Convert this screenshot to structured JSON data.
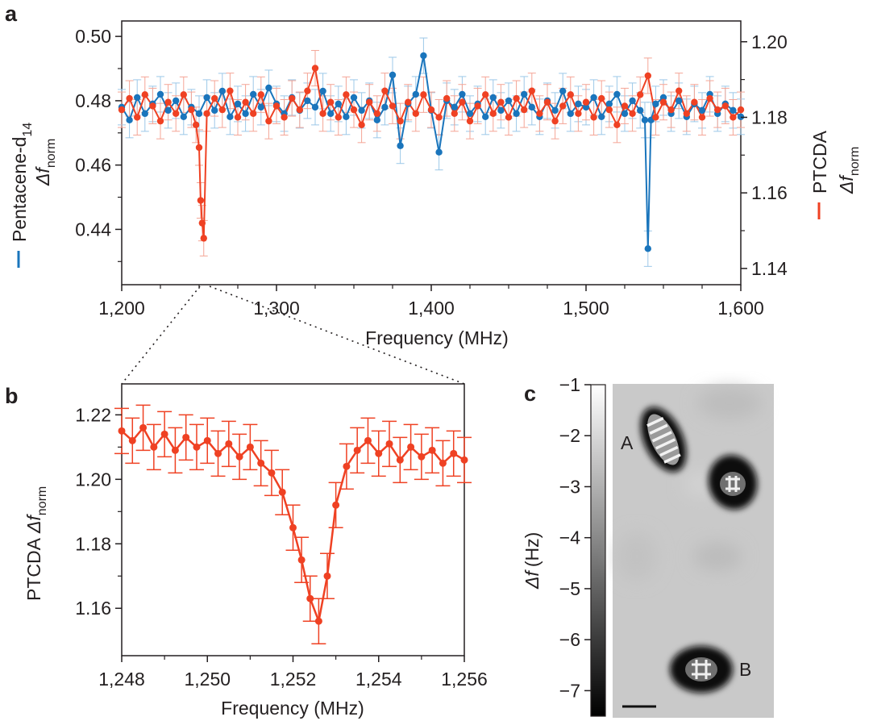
{
  "figure": {
    "panel_a_letter": "a",
    "panel_b_letter": "b",
    "panel_c_letter": "c",
    "colors": {
      "pentacene": "#1a75bc",
      "ptcda": "#ef4123",
      "axis": "#231f20"
    }
  },
  "chart_data": [
    {
      "panel": "a",
      "type": "line",
      "xlabel": "Frequency (MHz)",
      "xlim": [
        1200,
        1600
      ],
      "xticks": [
        1200,
        1300,
        1400,
        1500,
        1600
      ],
      "xtick_labels": [
        "1,200",
        "1,300",
        "1,400",
        "1,500",
        "1,600"
      ],
      "ylabel_left": {
        "prefix": "Pentacene-d",
        "subscript": "14",
        "symbol": "Δf",
        "symbol_sub": "norm"
      },
      "ylabel_right": {
        "prefix": "PTCDA",
        "symbol": "Δf",
        "symbol_sub": "norm"
      },
      "ylim_left": [
        0.4228,
        0.5048
      ],
      "yticks_left": [
        0.44,
        0.46,
        0.48,
        0.5
      ],
      "ytick_labels_left": [
        "0.44",
        "0.46",
        "0.48",
        "0.50"
      ],
      "ylim_right": [
        1.1357,
        1.2055
      ],
      "yticks_right": [
        1.14,
        1.16,
        1.18,
        1.2
      ],
      "ytick_labels_right": [
        "1.14",
        "1.16",
        "1.18",
        "1.20"
      ],
      "series": [
        {
          "name": "Pentacene-d14",
          "axis": "left",
          "color": "#1a75bc",
          "points": [
            [
              1200,
              0.478
            ],
            [
              1205,
              0.474
            ],
            [
              1210,
              0.481
            ],
            [
              1215,
              0.476
            ],
            [
              1220,
              0.479
            ],
            [
              1225,
              0.482
            ],
            [
              1230,
              0.477
            ],
            [
              1235,
              0.48
            ],
            [
              1240,
              0.475
            ],
            [
              1245,
              0.478
            ],
            [
              1250,
              0.476
            ],
            [
              1255,
              0.481
            ],
            [
              1260,
              0.477
            ],
            [
              1265,
              0.483
            ],
            [
              1270,
              0.475
            ],
            [
              1275,
              0.479
            ],
            [
              1280,
              0.476
            ],
            [
              1285,
              0.482
            ],
            [
              1290,
              0.478
            ],
            [
              1295,
              0.484
            ],
            [
              1300,
              0.479
            ],
            [
              1305,
              0.476
            ],
            [
              1310,
              0.481
            ],
            [
              1315,
              0.477
            ],
            [
              1320,
              0.48
            ],
            [
              1325,
              0.478
            ],
            [
              1330,
              0.483
            ],
            [
              1335,
              0.476
            ],
            [
              1340,
              0.479
            ],
            [
              1345,
              0.475
            ],
            [
              1350,
              0.481
            ],
            [
              1355,
              0.477
            ],
            [
              1360,
              0.48
            ],
            [
              1365,
              0.474
            ],
            [
              1370,
              0.478
            ],
            [
              1375,
              0.488
            ],
            [
              1380,
              0.466
            ],
            [
              1385,
              0.479
            ],
            [
              1390,
              0.482
            ],
            [
              1395,
              0.494
            ],
            [
              1400,
              0.477
            ],
            [
              1405,
              0.464
            ],
            [
              1410,
              0.48
            ],
            [
              1415,
              0.478
            ],
            [
              1420,
              0.482
            ],
            [
              1425,
              0.476
            ],
            [
              1430,
              0.479
            ],
            [
              1435,
              0.475
            ],
            [
              1440,
              0.481
            ],
            [
              1445,
              0.477
            ],
            [
              1450,
              0.48
            ],
            [
              1455,
              0.476
            ],
            [
              1460,
              0.482
            ],
            [
              1465,
              0.478
            ],
            [
              1470,
              0.475
            ],
            [
              1475,
              0.48
            ],
            [
              1480,
              0.477
            ],
            [
              1485,
              0.483
            ],
            [
              1490,
              0.476
            ],
            [
              1495,
              0.479
            ],
            [
              1500,
              0.478
            ],
            [
              1505,
              0.481
            ],
            [
              1510,
              0.475
            ],
            [
              1515,
              0.479
            ],
            [
              1520,
              0.482
            ],
            [
              1525,
              0.476
            ],
            [
              1530,
              0.48
            ],
            [
              1535,
              0.477
            ],
            [
              1538,
              0.474
            ],
            [
              1540,
              0.434
            ],
            [
              1542,
              0.474
            ],
            [
              1545,
              0.479
            ],
            [
              1550,
              0.481
            ],
            [
              1555,
              0.476
            ],
            [
              1560,
              0.48
            ],
            [
              1565,
              0.475
            ],
            [
              1570,
              0.479
            ],
            [
              1575,
              0.477
            ],
            [
              1580,
              0.482
            ],
            [
              1585,
              0.476
            ],
            [
              1590,
              0.479
            ],
            [
              1595,
              0.477
            ],
            [
              1600,
              0.475
            ]
          ]
        },
        {
          "name": "PTCDA",
          "axis": "right",
          "color": "#ef4123",
          "points": [
            [
              1200,
              1.182
            ],
            [
              1205,
              1.185
            ],
            [
              1210,
              1.18
            ],
            [
              1215,
              1.186
            ],
            [
              1220,
              1.183
            ],
            [
              1225,
              1.179
            ],
            [
              1230,
              1.184
            ],
            [
              1235,
              1.181
            ],
            [
              1240,
              1.186
            ],
            [
              1245,
              1.182
            ],
            [
              1248,
              1.178
            ],
            [
              1250,
              1.172
            ],
            [
              1251,
              1.158
            ],
            [
              1252,
              1.152
            ],
            [
              1253,
              1.148
            ],
            [
              1255,
              1.181
            ],
            [
              1260,
              1.185
            ],
            [
              1265,
              1.182
            ],
            [
              1270,
              1.187
            ],
            [
              1275,
              1.18
            ],
            [
              1280,
              1.184
            ],
            [
              1285,
              1.181
            ],
            [
              1290,
              1.186
            ],
            [
              1295,
              1.179
            ],
            [
              1300,
              1.183
            ],
            [
              1305,
              1.18
            ],
            [
              1310,
              1.185
            ],
            [
              1315,
              1.182
            ],
            [
              1320,
              1.187
            ],
            [
              1325,
              1.193
            ],
            [
              1330,
              1.181
            ],
            [
              1335,
              1.184
            ],
            [
              1340,
              1.18
            ],
            [
              1345,
              1.186
            ],
            [
              1350,
              1.182
            ],
            [
              1355,
              1.178
            ],
            [
              1360,
              1.184
            ],
            [
              1365,
              1.181
            ],
            [
              1370,
              1.187
            ],
            [
              1375,
              1.183
            ],
            [
              1380,
              1.179
            ],
            [
              1385,
              1.184
            ],
            [
              1390,
              1.181
            ],
            [
              1395,
              1.186
            ],
            [
              1400,
              1.182
            ],
            [
              1405,
              1.18
            ],
            [
              1410,
              1.185
            ],
            [
              1415,
              1.181
            ],
            [
              1420,
              1.184
            ],
            [
              1425,
              1.179
            ],
            [
              1430,
              1.183
            ],
            [
              1435,
              1.186
            ],
            [
              1440,
              1.181
            ],
            [
              1445,
              1.184
            ],
            [
              1450,
              1.18
            ],
            [
              1455,
              1.185
            ],
            [
              1460,
              1.182
            ],
            [
              1465,
              1.187
            ],
            [
              1470,
              1.181
            ],
            [
              1475,
              1.184
            ],
            [
              1480,
              1.179
            ],
            [
              1485,
              1.183
            ],
            [
              1490,
              1.186
            ],
            [
              1495,
              1.181
            ],
            [
              1500,
              1.184
            ],
            [
              1505,
              1.18
            ],
            [
              1510,
              1.185
            ],
            [
              1515,
              1.182
            ],
            [
              1520,
              1.178
            ],
            [
              1525,
              1.183
            ],
            [
              1530,
              1.181
            ],
            [
              1535,
              1.186
            ],
            [
              1540,
              1.191
            ],
            [
              1545,
              1.18
            ],
            [
              1550,
              1.184
            ],
            [
              1555,
              1.182
            ],
            [
              1560,
              1.187
            ],
            [
              1565,
              1.181
            ],
            [
              1570,
              1.184
            ],
            [
              1575,
              1.18
            ],
            [
              1580,
              1.185
            ],
            [
              1585,
              1.182
            ],
            [
              1590,
              1.183
            ],
            [
              1595,
              1.18
            ],
            [
              1600,
              1.182
            ]
          ]
        }
      ]
    },
    {
      "panel": "b",
      "type": "line",
      "xlabel": "Frequency (MHz)",
      "xlim": [
        1248,
        1256
      ],
      "xticks": [
        1248,
        1250,
        1252,
        1254,
        1256
      ],
      "xtick_labels": [
        "1,248",
        "1,250",
        "1,252",
        "1,254",
        "1,256"
      ],
      "ylabel": {
        "prefix": "PTCDA",
        "symbol": "Δf",
        "symbol_sub": "norm"
      },
      "ylim": [
        1.1453,
        1.2296
      ],
      "yticks": [
        1.16,
        1.18,
        1.2,
        1.22
      ],
      "ytick_labels": [
        "1.16",
        "1.18",
        "1.20",
        "1.22"
      ],
      "series": [
        {
          "name": "PTCDA",
          "color": "#ef4123",
          "points": [
            [
              1248,
              1.215
            ],
            [
              1248.25,
              1.212
            ],
            [
              1248.5,
              1.216
            ],
            [
              1248.75,
              1.21
            ],
            [
              1249,
              1.214
            ],
            [
              1249.25,
              1.209
            ],
            [
              1249.5,
              1.213
            ],
            [
              1249.75,
              1.21
            ],
            [
              1250,
              1.212
            ],
            [
              1250.25,
              1.208
            ],
            [
              1250.5,
              1.211
            ],
            [
              1250.75,
              1.207
            ],
            [
              1251,
              1.21
            ],
            [
              1251.25,
              1.205
            ],
            [
              1251.5,
              1.202
            ],
            [
              1251.75,
              1.196
            ],
            [
              1252,
              1.185
            ],
            [
              1252.2,
              1.175
            ],
            [
              1252.4,
              1.163
            ],
            [
              1252.6,
              1.156
            ],
            [
              1252.8,
              1.17
            ],
            [
              1253,
              1.192
            ],
            [
              1253.25,
              1.204
            ],
            [
              1253.5,
              1.209
            ],
            [
              1253.75,
              1.212
            ],
            [
              1254,
              1.208
            ],
            [
              1254.25,
              1.211
            ],
            [
              1254.5,
              1.206
            ],
            [
              1254.75,
              1.21
            ],
            [
              1255,
              1.207
            ],
            [
              1255.25,
              1.209
            ],
            [
              1255.5,
              1.205
            ],
            [
              1255.75,
              1.208
            ],
            [
              1256,
              1.206
            ]
          ],
          "error_bar": 0.007
        }
      ]
    }
  ],
  "panel_c": {
    "colorbar_label": {
      "symbol": "Δf",
      "unit": "(Hz)"
    },
    "colorbar_range": [
      -7.5,
      -1
    ],
    "colorbar_ticks": [
      -1,
      -2,
      -3,
      -4,
      -5,
      -6,
      -7
    ],
    "colorbar_tick_labels": [
      "−1",
      "−2",
      "−3",
      "−4",
      "−5",
      "−6",
      "−7"
    ],
    "molecule_labels": [
      "A",
      "B"
    ]
  }
}
